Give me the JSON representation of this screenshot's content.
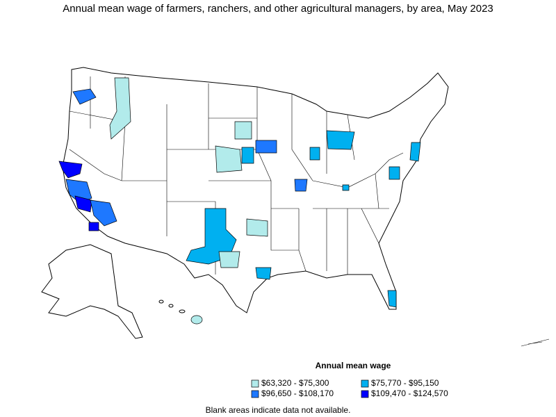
{
  "title": "Annual mean wage of farmers, ranchers, and other agricultural managers, by area, May 2023",
  "legend": {
    "title": "Annual mean wage",
    "items": [
      {
        "label": "$63,320 - $75,300",
        "color": "#b2ebeb"
      },
      {
        "label": "$75,770 - $95,150",
        "color": "#00b0f0"
      },
      {
        "label": "$96,650 - $108,170",
        "color": "#1e78ff"
      },
      {
        "label": "$109,470 - $124,570",
        "color": "#0000ff"
      }
    ]
  },
  "footnote": "Blank areas indicate data not available."
}
